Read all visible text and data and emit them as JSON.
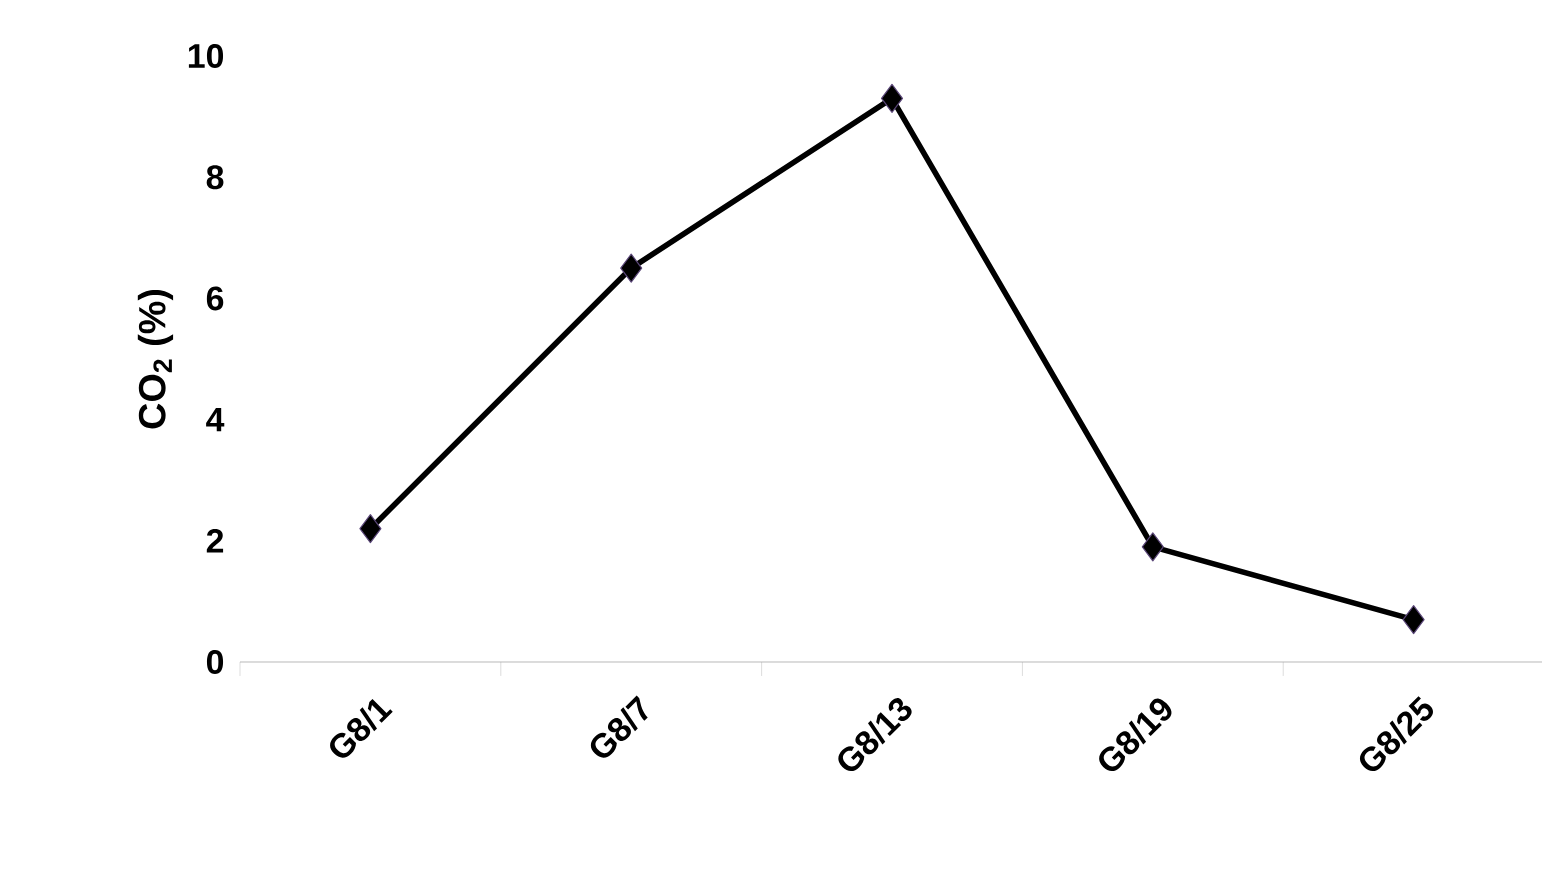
{
  "chart_data": {
    "type": "line",
    "ylabel": "CO$_{2}$ (%)",
    "categories": [
      "G8/1",
      "G8/7",
      "G8/13",
      "G8/19",
      "G8/25"
    ],
    "series": [
      {
        "color": "#000000",
        "values": [
          2.2,
          6.5,
          9.3,
          1.9,
          0.7
        ]
      }
    ],
    "ylim": [
      0,
      10
    ],
    "yticks": [
      0,
      2,
      4,
      6,
      8,
      10
    ],
    "marker": "diamond",
    "line_style": "solid",
    "grid": false
  }
}
